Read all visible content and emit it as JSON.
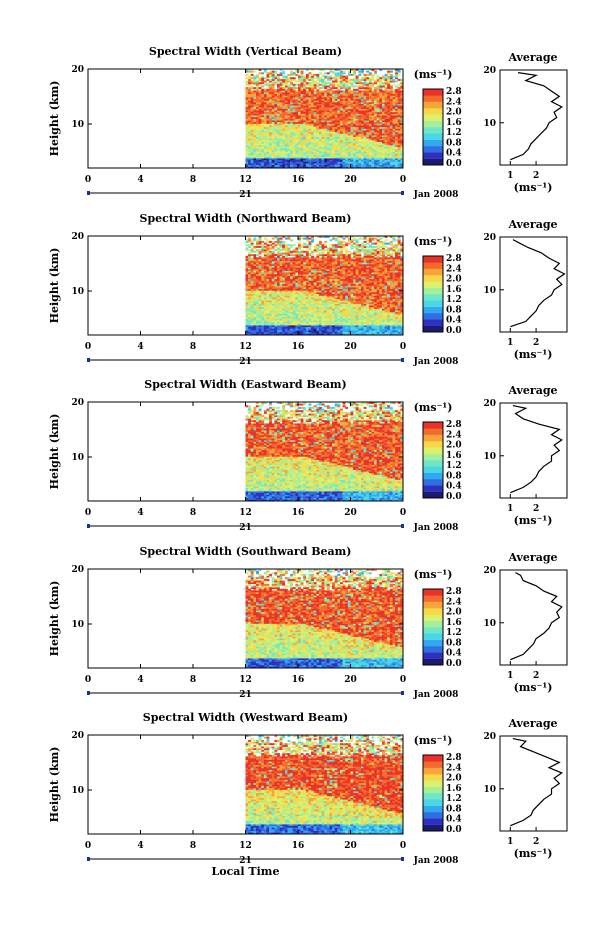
{
  "units": "(ms⁻¹)",
  "date_label": "Jan 2008",
  "day_label": "21",
  "x_axis_label": "Local Time",
  "y_axis_label": "Height (km)",
  "avg_title": "Average",
  "colors": {
    "scale": [
      "#1a1a6e",
      "#3030c0",
      "#2f6fe0",
      "#32a8f0",
      "#49d7e6",
      "#6fe6c8",
      "#a6ef9a",
      "#dcf06e",
      "#f7d84a",
      "#f7a43a",
      "#f46a2c",
      "#e8322a"
    ]
  },
  "chart_data": [
    {
      "type": "heatmap",
      "title": "Spectral Width (Vertical Beam)",
      "xlabel": "",
      "ylabel": "Height (km)",
      "xticks": [
        "0",
        "4",
        "8",
        "12",
        "16",
        "20",
        "0"
      ],
      "yticks": [
        "10",
        "20"
      ],
      "xlim": [
        0,
        24
      ],
      "ylim": [
        2,
        20
      ],
      "data_x_range": [
        12,
        24
      ],
      "colorbar_ticks": [
        "0.0",
        "0.4",
        "0.8",
        "1.2",
        "1.6",
        "2.0",
        "2.4",
        "2.8"
      ],
      "avg_profile": {
        "xticks": [
          "1",
          "2"
        ],
        "ylim": [
          2,
          20
        ],
        "xlim": [
          0.6,
          3.2
        ],
        "height": [
          3,
          4,
          5,
          6,
          7,
          8,
          9,
          10,
          11,
          12,
          13,
          14,
          15,
          16,
          17,
          18,
          19,
          19.5
        ],
        "width": [
          1.0,
          1.5,
          1.7,
          1.8,
          2.0,
          2.2,
          2.4,
          2.5,
          2.8,
          2.7,
          3.0,
          2.6,
          2.9,
          2.6,
          2.3,
          1.6,
          2.0,
          1.3
        ]
      }
    },
    {
      "type": "heatmap",
      "title": "Spectral Width (Northward Beam)",
      "xlabel": "",
      "ylabel": "Height (km)",
      "xticks": [
        "0",
        "4",
        "8",
        "12",
        "16",
        "20",
        "0"
      ],
      "yticks": [
        "10",
        "20"
      ],
      "xlim": [
        0,
        24
      ],
      "ylim": [
        2,
        20
      ],
      "data_x_range": [
        12,
        24
      ],
      "colorbar_ticks": [
        "0.0",
        "0.4",
        "0.8",
        "1.2",
        "1.6",
        "2.0",
        "2.4",
        "2.8"
      ],
      "avg_profile": {
        "xticks": [
          "1",
          "2"
        ],
        "ylim": [
          2,
          20
        ],
        "xlim": [
          0.6,
          3.2
        ],
        "height": [
          3,
          4,
          5,
          6,
          7,
          8,
          9,
          10,
          11,
          12,
          13,
          14,
          15,
          16,
          17,
          18,
          19,
          19.5
        ],
        "width": [
          1.0,
          1.6,
          1.8,
          2.0,
          2.1,
          2.3,
          2.6,
          2.7,
          3.0,
          2.8,
          3.1,
          2.7,
          2.9,
          2.5,
          2.2,
          1.7,
          1.3,
          1.1
        ]
      }
    },
    {
      "type": "heatmap",
      "title": "Spectral Width (Eastward Beam)",
      "xlabel": "",
      "ylabel": "Height (km)",
      "xticks": [
        "0",
        "4",
        "8",
        "12",
        "16",
        "20",
        "0"
      ],
      "yticks": [
        "10",
        "20"
      ],
      "xlim": [
        0,
        24
      ],
      "ylim": [
        2,
        20
      ],
      "data_x_range": [
        12,
        24
      ],
      "colorbar_ticks": [
        "0.0",
        "0.4",
        "0.8",
        "1.2",
        "1.6",
        "2.0",
        "2.4",
        "2.8"
      ],
      "avg_profile": {
        "xticks": [
          "1",
          "2"
        ],
        "ylim": [
          2,
          20
        ],
        "xlim": [
          0.6,
          3.2
        ],
        "height": [
          3,
          4,
          5,
          6,
          7,
          8,
          9,
          10,
          11,
          12,
          13,
          14,
          15,
          16,
          17,
          18,
          19,
          19.5
        ],
        "width": [
          1.0,
          1.5,
          1.8,
          2.0,
          2.1,
          2.3,
          2.6,
          2.6,
          2.9,
          2.7,
          3.0,
          2.6,
          2.9,
          2.1,
          1.5,
          1.2,
          1.6,
          1.1
        ]
      }
    },
    {
      "type": "heatmap",
      "title": "Spectral Width (Southward Beam)",
      "xlabel": "",
      "ylabel": "Height (km)",
      "xticks": [
        "0",
        "4",
        "8",
        "12",
        "16",
        "20",
        "0"
      ],
      "yticks": [
        "10",
        "20"
      ],
      "xlim": [
        0,
        24
      ],
      "ylim": [
        2,
        20
      ],
      "data_x_range": [
        12,
        24
      ],
      "colorbar_ticks": [
        "0.0",
        "0.4",
        "0.8",
        "1.2",
        "1.6",
        "2.0",
        "2.4",
        "2.8"
      ],
      "avg_profile": {
        "xticks": [
          "1",
          "2"
        ],
        "ylim": [
          2,
          20
        ],
        "xlim": [
          0.6,
          3.2
        ],
        "height": [
          3,
          4,
          5,
          6,
          7,
          8,
          9,
          10,
          11,
          12,
          13,
          14,
          15,
          16,
          17,
          18,
          19,
          19.5
        ],
        "width": [
          1.0,
          1.5,
          1.7,
          1.9,
          2.0,
          2.3,
          2.5,
          2.6,
          2.9,
          2.8,
          3.0,
          2.6,
          2.8,
          2.3,
          2.0,
          1.5,
          1.4,
          1.2
        ]
      }
    },
    {
      "type": "heatmap",
      "title": "Spectral Width (Westward Beam)",
      "xlabel": "Local Time",
      "ylabel": "Height (km)",
      "xticks": [
        "0",
        "4",
        "8",
        "12",
        "16",
        "20",
        "0"
      ],
      "yticks": [
        "10",
        "20"
      ],
      "xlim": [
        0,
        24
      ],
      "ylim": [
        2,
        20
      ],
      "data_x_range": [
        12,
        24
      ],
      "colorbar_ticks": [
        "0.0",
        "0.4",
        "0.8",
        "1.2",
        "1.6",
        "2.0",
        "2.4",
        "2.8"
      ],
      "avg_profile": {
        "xticks": [
          "1",
          "2"
        ],
        "ylim": [
          2,
          20
        ],
        "xlim": [
          0.6,
          3.2
        ],
        "height": [
          3,
          4,
          5,
          6,
          7,
          8,
          9,
          10,
          11,
          12,
          13,
          14,
          15,
          16,
          17,
          18,
          19,
          19.5
        ],
        "width": [
          1.0,
          1.5,
          1.8,
          1.9,
          2.1,
          2.3,
          2.6,
          2.6,
          2.9,
          2.7,
          3.0,
          2.5,
          2.9,
          2.4,
          1.9,
          1.4,
          1.6,
          1.1
        ]
      }
    }
  ]
}
